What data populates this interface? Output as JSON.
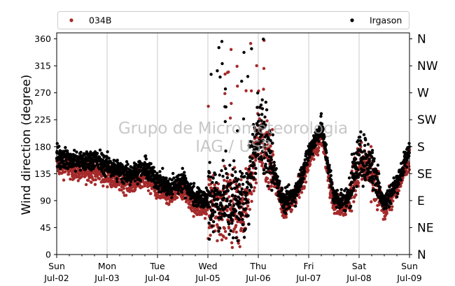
{
  "chart_data": {
    "type": "scatter",
    "title": "",
    "xlabel": "",
    "ylabel": "Wind direction (degree)",
    "ylim": [
      0,
      370
    ],
    "yticks": [
      0,
      45,
      90,
      135,
      180,
      225,
      270,
      315,
      360
    ],
    "right_axis_labels": [
      "N",
      "NE",
      "E",
      "SE",
      "S",
      "SW",
      "W",
      "NW",
      "N"
    ],
    "xlim": [
      "2017-07-02",
      "2017-07-09"
    ],
    "x_major_ticks": [
      {
        "day": "Sun",
        "date": "Jul-02"
      },
      {
        "day": "Mon",
        "date": "Jul-03"
      },
      {
        "day": "Tue",
        "date": "Jul-04"
      },
      {
        "day": "Wed",
        "date": "Jul-05"
      },
      {
        "day": "Thu",
        "date": "Jul-06"
      },
      {
        "day": "Fri",
        "date": "Jul-07"
      },
      {
        "day": "Sat",
        "date": "Jul-08"
      },
      {
        "day": "Sun",
        "date": "Jul-09"
      }
    ],
    "grid": "vertical lines at day boundaries",
    "legend_placement": "top, above plot",
    "watermark": [
      "Grupo de Micrometeorologia",
      "IAG / USP"
    ],
    "series": [
      {
        "name": "034B",
        "color": "#a52a2a",
        "marker": "circle",
        "profile": [
          {
            "x": "Jul-02 00:00",
            "y": 150
          },
          {
            "x": "Jul-02 06:00",
            "y": 145
          },
          {
            "x": "Jul-02 12:00",
            "y": 138
          },
          {
            "x": "Jul-02 18:00",
            "y": 140
          },
          {
            "x": "Jul-03 00:00",
            "y": 132
          },
          {
            "x": "Jul-03 06:00",
            "y": 122
          },
          {
            "x": "Jul-03 12:00",
            "y": 118
          },
          {
            "x": "Jul-03 18:00",
            "y": 128
          },
          {
            "x": "Jul-04 00:00",
            "y": 108
          },
          {
            "x": "Jul-04 06:00",
            "y": 95
          },
          {
            "x": "Jul-04 12:00",
            "y": 110
          },
          {
            "x": "Jul-04 18:00",
            "y": 80
          },
          {
            "x": "Jul-05 00:00",
            "y": 78
          },
          {
            "x": "Jul-05 06:00",
            "y": 82
          },
          {
            "x": "Jul-05 12:00",
            "y": 80
          },
          {
            "x": "Jul-05 18:00",
            "y": 75
          },
          {
            "x": "Jul-06 00:00",
            "y": 200
          },
          {
            "x": "Jul-06 06:00",
            "y": 150
          },
          {
            "x": "Jul-06 12:00",
            "y": 75
          },
          {
            "x": "Jul-06 18:00",
            "y": 95
          },
          {
            "x": "Jul-07 00:00",
            "y": 155
          },
          {
            "x": "Jul-07 06:00",
            "y": 200
          },
          {
            "x": "Jul-07 12:00",
            "y": 85
          },
          {
            "x": "Jul-07 18:00",
            "y": 80
          },
          {
            "x": "Jul-08 00:00",
            "y": 150
          },
          {
            "x": "Jul-08 06:00",
            "y": 135
          },
          {
            "x": "Jul-08 12:00",
            "y": 75
          },
          {
            "x": "Jul-08 18:00",
            "y": 110
          },
          {
            "x": "Jul-09 00:00",
            "y": 160
          }
        ]
      },
      {
        "name": "Irgason",
        "color": "#000000",
        "marker": "circle",
        "profile": [
          {
            "x": "Jul-02 00:00",
            "y": 165
          },
          {
            "x": "Jul-02 06:00",
            "y": 158
          },
          {
            "x": "Jul-02 12:00",
            "y": 155
          },
          {
            "x": "Jul-02 18:00",
            "y": 160
          },
          {
            "x": "Jul-03 00:00",
            "y": 148
          },
          {
            "x": "Jul-03 06:00",
            "y": 140
          },
          {
            "x": "Jul-03 12:00",
            "y": 135
          },
          {
            "x": "Jul-03 18:00",
            "y": 145
          },
          {
            "x": "Jul-04 00:00",
            "y": 125
          },
          {
            "x": "Jul-04 06:00",
            "y": 110
          },
          {
            "x": "Jul-04 12:00",
            "y": 125
          },
          {
            "x": "Jul-04 18:00",
            "y": 95
          },
          {
            "x": "Jul-05 00:00",
            "y": 90
          },
          {
            "x": "Jul-05 06:00",
            "y": 95
          },
          {
            "x": "Jul-05 12:00",
            "y": 90
          },
          {
            "x": "Jul-05 18:00",
            "y": 85
          },
          {
            "x": "Jul-06 00:00",
            "y": 210
          },
          {
            "x": "Jul-06 06:00",
            "y": 160
          },
          {
            "x": "Jul-06 12:00",
            "y": 85
          },
          {
            "x": "Jul-06 18:00",
            "y": 105
          },
          {
            "x": "Jul-07 00:00",
            "y": 170
          },
          {
            "x": "Jul-07 06:00",
            "y": 215
          },
          {
            "x": "Jul-07 12:00",
            "y": 95
          },
          {
            "x": "Jul-07 18:00",
            "y": 90
          },
          {
            "x": "Jul-08 00:00",
            "y": 165
          },
          {
            "x": "Jul-08 06:00",
            "y": 150
          },
          {
            "x": "Jul-08 12:00",
            "y": 85
          },
          {
            "x": "Jul-08 18:00",
            "y": 120
          },
          {
            "x": "Jul-09 00:00",
            "y": 175
          }
        ]
      }
    ]
  }
}
